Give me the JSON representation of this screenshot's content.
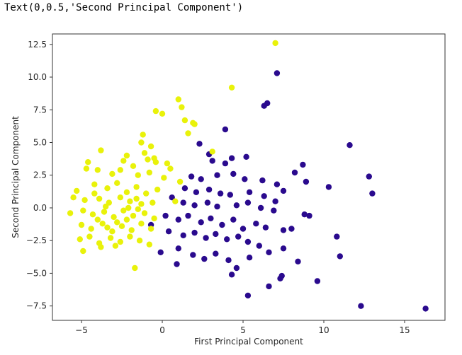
{
  "output_text": "Text(0,0.5,'Second Principal Component')",
  "colors": {
    "class_a": "#2a0a8e",
    "class_b": "#e9f20a",
    "axes": "#333333"
  },
  "chart_data": {
    "type": "scatter",
    "title": "",
    "xlabel": "First Principal Component",
    "ylabel": "Second Principal Component",
    "xlim": [
      -6.8,
      17.5
    ],
    "ylim": [
      -8.6,
      13.3
    ],
    "xticks": [
      -5,
      0,
      5,
      10,
      15
    ],
    "yticks": [
      -7.5,
      -5.0,
      -2.5,
      0.0,
      2.5,
      5.0,
      7.5,
      10.0,
      12.5
    ],
    "grid": false,
    "legend": false,
    "series": [
      {
        "color": "#2a0a8e",
        "points": [
          [
            7.1,
            10.3
          ],
          [
            6.5,
            8.0
          ],
          [
            6.3,
            7.8
          ],
          [
            3.9,
            6.0
          ],
          [
            11.6,
            4.8
          ],
          [
            8.7,
            3.3
          ],
          [
            4.3,
            3.8
          ],
          [
            5.2,
            3.9
          ],
          [
            2.3,
            4.9
          ],
          [
            2.9,
            4.1
          ],
          [
            3.1,
            3.6
          ],
          [
            3.9,
            3.4
          ],
          [
            12.8,
            2.4
          ],
          [
            8.2,
            2.7
          ],
          [
            8.9,
            2.0
          ],
          [
            10.3,
            1.6
          ],
          [
            13.0,
            1.1
          ],
          [
            1.8,
            2.4
          ],
          [
            2.4,
            2.2
          ],
          [
            3.4,
            2.5
          ],
          [
            4.4,
            2.6
          ],
          [
            5.1,
            2.2
          ],
          [
            6.2,
            2.1
          ],
          [
            7.1,
            1.8
          ],
          [
            7.5,
            1.3
          ],
          [
            1.4,
            1.5
          ],
          [
            2.1,
            1.2
          ],
          [
            2.9,
            1.4
          ],
          [
            3.6,
            1.1
          ],
          [
            4.2,
            1.0
          ],
          [
            5.4,
            1.2
          ],
          [
            6.3,
            0.9
          ],
          [
            7.0,
            0.5
          ],
          [
            0.6,
            0.8
          ],
          [
            1.3,
            0.4
          ],
          [
            2.0,
            0.2
          ],
          [
            2.8,
            0.4
          ],
          [
            3.4,
            0.1
          ],
          [
            4.6,
            0.2
          ],
          [
            5.3,
            0.4
          ],
          [
            6.1,
            0.0
          ],
          [
            6.9,
            -0.2
          ],
          [
            8.8,
            -0.5
          ],
          [
            9.1,
            -0.6
          ],
          [
            0.2,
            -0.6
          ],
          [
            1.0,
            -0.9
          ],
          [
            1.6,
            -0.6
          ],
          [
            2.4,
            -1.1
          ],
          [
            3.0,
            -0.8
          ],
          [
            3.7,
            -1.3
          ],
          [
            4.4,
            -0.9
          ],
          [
            5.0,
            -1.6
          ],
          [
            5.8,
            -1.2
          ],
          [
            6.4,
            -1.5
          ],
          [
            7.5,
            -1.7
          ],
          [
            8.0,
            -1.6
          ],
          [
            -0.7,
            -1.3
          ],
          [
            0.4,
            -1.8
          ],
          [
            1.3,
            -2.1
          ],
          [
            2.0,
            -1.9
          ],
          [
            2.7,
            -2.3
          ],
          [
            3.3,
            -2.0
          ],
          [
            4.0,
            -2.4
          ],
          [
            4.7,
            -2.2
          ],
          [
            5.3,
            -2.6
          ],
          [
            6.0,
            -2.9
          ],
          [
            6.6,
            -3.4
          ],
          [
            7.5,
            -3.1
          ],
          [
            10.8,
            -2.2
          ],
          [
            -0.1,
            -3.4
          ],
          [
            1.0,
            -3.1
          ],
          [
            1.9,
            -3.6
          ],
          [
            2.6,
            -3.9
          ],
          [
            3.3,
            -3.5
          ],
          [
            4.1,
            -4.0
          ],
          [
            4.6,
            -4.6
          ],
          [
            5.4,
            -3.8
          ],
          [
            7.3,
            -5.4
          ],
          [
            8.4,
            -4.1
          ],
          [
            11.0,
            -3.7
          ],
          [
            4.3,
            -5.1
          ],
          [
            6.6,
            -6.0
          ],
          [
            9.6,
            -5.6
          ],
          [
            5.3,
            -6.7
          ],
          [
            12.3,
            -7.5
          ],
          [
            16.3,
            -7.7
          ],
          [
            7.4,
            -5.2
          ],
          [
            0.9,
            -4.3
          ]
        ]
      },
      {
        "color": "#e9f20a",
        "points": [
          [
            7.0,
            12.6
          ],
          [
            4.3,
            9.2
          ],
          [
            1.0,
            8.3
          ],
          [
            1.2,
            7.7
          ],
          [
            -0.4,
            7.4
          ],
          [
            0.0,
            7.2
          ],
          [
            1.4,
            6.7
          ],
          [
            1.9,
            6.5
          ],
          [
            2.0,
            6.4
          ],
          [
            -1.2,
            5.6
          ],
          [
            -1.3,
            5.0
          ],
          [
            -0.7,
            4.7
          ],
          [
            -3.8,
            4.4
          ],
          [
            -1.1,
            4.2
          ],
          [
            -0.5,
            3.8
          ],
          [
            -0.9,
            3.7
          ],
          [
            -4.6,
            3.5
          ],
          [
            -2.4,
            3.6
          ],
          [
            -1.8,
            3.2
          ],
          [
            -0.4,
            3.5
          ],
          [
            0.3,
            3.4
          ],
          [
            -4.0,
            2.9
          ],
          [
            -3.1,
            2.6
          ],
          [
            -2.6,
            2.9
          ],
          [
            -1.5,
            2.5
          ],
          [
            -0.8,
            2.7
          ],
          [
            0.1,
            2.3
          ],
          [
            -5.3,
            1.3
          ],
          [
            -4.2,
            1.8
          ],
          [
            -3.4,
            1.5
          ],
          [
            -2.8,
            1.9
          ],
          [
            -2.2,
            1.2
          ],
          [
            -1.6,
            1.6
          ],
          [
            -1.0,
            1.1
          ],
          [
            -0.3,
            1.4
          ],
          [
            -5.5,
            0.8
          ],
          [
            -4.8,
            0.6
          ],
          [
            -3.9,
            0.7
          ],
          [
            -3.3,
            0.4
          ],
          [
            -2.6,
            0.8
          ],
          [
            -2.0,
            0.5
          ],
          [
            -1.3,
            0.3
          ],
          [
            -0.6,
            0.4
          ],
          [
            -5.7,
            -0.4
          ],
          [
            -4.9,
            -0.2
          ],
          [
            -4.3,
            -0.5
          ],
          [
            -3.6,
            -0.3
          ],
          [
            -3.0,
            -0.7
          ],
          [
            -2.4,
            -0.2
          ],
          [
            -1.8,
            -0.6
          ],
          [
            -1.1,
            -0.4
          ],
          [
            -0.5,
            -0.8
          ],
          [
            -5.0,
            -1.3
          ],
          [
            -4.4,
            -1.6
          ],
          [
            -3.7,
            -1.2
          ],
          [
            -3.1,
            -1.8
          ],
          [
            -2.5,
            -1.4
          ],
          [
            -1.9,
            -1.7
          ],
          [
            -1.3,
            -1.2
          ],
          [
            -0.7,
            -1.6
          ],
          [
            -5.1,
            -2.4
          ],
          [
            -4.5,
            -2.2
          ],
          [
            -3.9,
            -2.7
          ],
          [
            -3.2,
            -2.3
          ],
          [
            -2.6,
            -2.6
          ],
          [
            -2.0,
            -2.2
          ],
          [
            -1.4,
            -2.5
          ],
          [
            -0.8,
            -2.8
          ],
          [
            -4.9,
            -3.3
          ],
          [
            -3.8,
            -3.0
          ],
          [
            -2.9,
            -2.9
          ],
          [
            -1.7,
            -4.6
          ],
          [
            1.6,
            5.7
          ],
          [
            3.1,
            4.3
          ],
          [
            0.5,
            3.0
          ],
          [
            1.1,
            2.0
          ],
          [
            0.8,
            0.5
          ],
          [
            -4.7,
            3.0
          ],
          [
            -2.2,
            4.0
          ],
          [
            -3.5,
            0.1
          ],
          [
            -2.1,
            0.0
          ],
          [
            -1.5,
            -0.1
          ],
          [
            -4.0,
            -0.9
          ],
          [
            -2.8,
            -1.1
          ],
          [
            -2.2,
            -0.9
          ],
          [
            -1.6,
            0.7
          ],
          [
            -3.4,
            -1.5
          ],
          [
            -4.2,
            1.1
          ]
        ]
      }
    ]
  }
}
